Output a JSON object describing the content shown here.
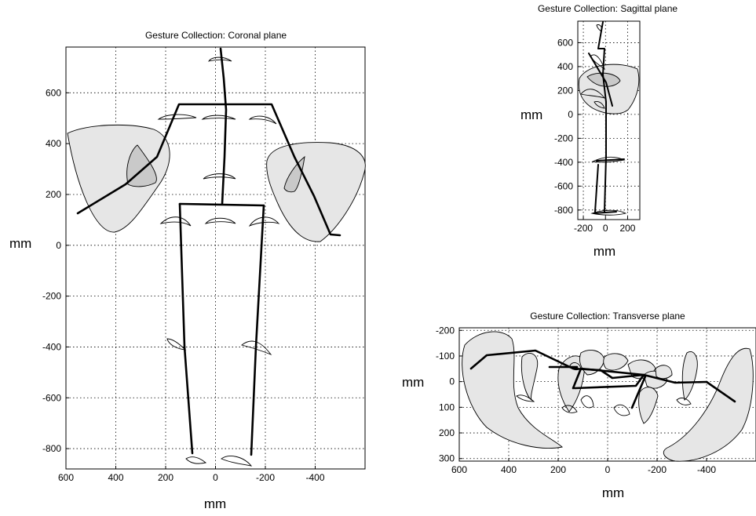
{
  "chart_data": [
    {
      "type": "line",
      "title": "Gesture Collection: Coronal plane",
      "xlabel": "mm",
      "ylabel": "mm",
      "xlim": [
        600,
        -600
      ],
      "ylim": [
        -880,
        780
      ],
      "x_ticks": [
        600,
        400,
        200,
        0,
        -200,
        -400
      ],
      "y_ticks": [
        -800,
        -600,
        -400,
        -200,
        0,
        200,
        400,
        600
      ],
      "grid": true
    },
    {
      "type": "line",
      "title": "Gesture Collection: Sagittal plane",
      "xlabel": "mm",
      "ylabel": "mm",
      "xlim": [
        -250,
        310
      ],
      "ylim": [
        -880,
        780
      ],
      "x_ticks": [
        -200,
        0,
        200
      ],
      "y_ticks": [
        -800,
        -600,
        -400,
        -200,
        0,
        200,
        400,
        600
      ],
      "grid": true
    },
    {
      "type": "line",
      "title": "Gesture Collection: Transverse plane",
      "xlabel": "mm",
      "ylabel": "mm",
      "xlim": [
        600,
        -600
      ],
      "ylim": [
        310,
        -210
      ],
      "x_ticks": [
        600,
        400,
        200,
        0,
        -200,
        -400
      ],
      "y_ticks": [
        -200,
        -100,
        0,
        100,
        200,
        300
      ],
      "grid": true
    }
  ]
}
